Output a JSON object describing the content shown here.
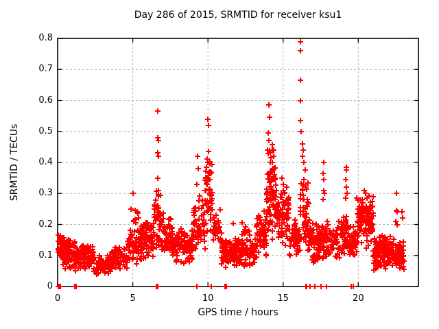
{
  "chart_data": {
    "type": "scatter",
    "title": "Day 286 of 2015, SRMTID for receiver ksu1",
    "xlabel": "GPS time / hours",
    "ylabel": "SRMTID / TECUs",
    "xlim": [
      0,
      24
    ],
    "ylim": [
      0,
      0.8
    ],
    "xticks": [
      0,
      5,
      10,
      15,
      20
    ],
    "xtick_labels": [
      "0",
      "5",
      "10",
      "15",
      "20"
    ],
    "yticks": [
      0,
      0.1,
      0.2,
      0.3,
      0.4,
      0.5,
      0.6,
      0.7,
      0.8
    ],
    "ytick_labels": [
      "0",
      "0.1",
      "0.2",
      "0.3",
      "0.4",
      "0.5",
      "0.6",
      "0.7",
      "0.8"
    ],
    "grid": true,
    "grid_style": "dashed",
    "legend": "none",
    "marker": {
      "shape": "plus",
      "color": "#ff0000",
      "size": 8,
      "stroke": 2
    },
    "colors": {
      "points": "#ff0000",
      "grid": "#b3b3b3",
      "axes": "#000000",
      "background": "#ffffff"
    },
    "seed": 286,
    "density_segments": [
      [
        0.03,
        0.5,
        55,
        0.06,
        0.17
      ],
      [
        0.5,
        1.3,
        75,
        0.05,
        0.155
      ],
      [
        1.3,
        2.4,
        80,
        0.045,
        0.135
      ],
      [
        2.4,
        3.6,
        75,
        0.035,
        0.115
      ],
      [
        3.6,
        4.6,
        70,
        0.05,
        0.135
      ],
      [
        4.6,
        5.6,
        75,
        0.07,
        0.2
      ],
      [
        4.8,
        5.5,
        8,
        0.17,
        0.26
      ],
      [
        5.6,
        6.4,
        70,
        0.08,
        0.22
      ],
      [
        6.4,
        6.9,
        45,
        0.1,
        0.33
      ],
      [
        6.9,
        7.6,
        60,
        0.09,
        0.24
      ],
      [
        7.6,
        9.0,
        110,
        0.07,
        0.19
      ],
      [
        9.0,
        9.8,
        60,
        0.1,
        0.3
      ],
      [
        9.8,
        10.3,
        45,
        0.15,
        0.42
      ],
      [
        10.3,
        10.9,
        35,
        0.1,
        0.26
      ],
      [
        10.9,
        13.2,
        190,
        0.06,
        0.16
      ],
      [
        11.5,
        13.0,
        12,
        0.155,
        0.21
      ],
      [
        13.2,
        13.9,
        60,
        0.09,
        0.25
      ],
      [
        13.9,
        14.6,
        70,
        0.14,
        0.4
      ],
      [
        14.0,
        14.5,
        18,
        0.28,
        0.46
      ],
      [
        14.6,
        15.4,
        70,
        0.12,
        0.33
      ],
      [
        15.4,
        16.1,
        55,
        0.08,
        0.22
      ],
      [
        16.1,
        16.7,
        55,
        0.1,
        0.35
      ],
      [
        16.7,
        18.1,
        110,
        0.07,
        0.22
      ],
      [
        18.1,
        19.4,
        90,
        0.08,
        0.24
      ],
      [
        19.4,
        19.9,
        45,
        0.08,
        0.2
      ],
      [
        19.9,
        21.0,
        115,
        0.12,
        0.3
      ],
      [
        21.0,
        22.3,
        135,
        0.05,
        0.17
      ],
      [
        22.3,
        23.08,
        65,
        0.04,
        0.16
      ]
    ],
    "outliers": [
      [
        4.9,
        0.25
      ],
      [
        5.02,
        0.3
      ],
      [
        5.3,
        0.24
      ],
      [
        6.68,
        0.565
      ],
      [
        6.68,
        0.48
      ],
      [
        6.7,
        0.47
      ],
      [
        6.66,
        0.43
      ],
      [
        6.72,
        0.42
      ],
      [
        6.65,
        0.35
      ],
      [
        6.7,
        0.31
      ],
      [
        9.3,
        0.42
      ],
      [
        9.35,
        0.38
      ],
      [
        9.25,
        0.33
      ],
      [
        10.0,
        0.54
      ],
      [
        10.02,
        0.52
      ],
      [
        10.05,
        0.435
      ],
      [
        9.95,
        0.41
      ],
      [
        10.0,
        0.4
      ],
      [
        9.9,
        0.385
      ],
      [
        10.1,
        0.37
      ],
      [
        9.85,
        0.35
      ],
      [
        10.05,
        0.345
      ],
      [
        9.95,
        0.33
      ],
      [
        9.8,
        0.31
      ],
      [
        10.15,
        0.3
      ],
      [
        14.05,
        0.585
      ],
      [
        14.1,
        0.545
      ],
      [
        14.0,
        0.495
      ],
      [
        14.05,
        0.47
      ],
      [
        13.95,
        0.44
      ],
      [
        14.15,
        0.43
      ],
      [
        14.2,
        0.415
      ],
      [
        14.3,
        0.44
      ],
      [
        14.35,
        0.42
      ],
      [
        14.3,
        0.4
      ],
      [
        14.4,
        0.38
      ],
      [
        14.25,
        0.37
      ],
      [
        14.1,
        0.35
      ],
      [
        14.9,
        0.35
      ],
      [
        15.0,
        0.33
      ],
      [
        15.1,
        0.3
      ],
      [
        16.14,
        0.79
      ],
      [
        16.14,
        0.76
      ],
      [
        16.14,
        0.665
      ],
      [
        16.14,
        0.6
      ],
      [
        16.14,
        0.535
      ],
      [
        16.2,
        0.5
      ],
      [
        16.3,
        0.46
      ],
      [
        16.35,
        0.44
      ],
      [
        16.3,
        0.42
      ],
      [
        16.4,
        0.4
      ],
      [
        16.45,
        0.375
      ],
      [
        16.4,
        0.345
      ],
      [
        16.5,
        0.32
      ],
      [
        17.7,
        0.4
      ],
      [
        17.68,
        0.365
      ],
      [
        17.72,
        0.345
      ],
      [
        17.7,
        0.31
      ],
      [
        17.75,
        0.3
      ],
      [
        17.65,
        0.28
      ],
      [
        19.2,
        0.385
      ],
      [
        19.22,
        0.375
      ],
      [
        19.18,
        0.345
      ],
      [
        19.2,
        0.32
      ],
      [
        19.25,
        0.3
      ],
      [
        19.15,
        0.285
      ],
      [
        20.3,
        0.27
      ],
      [
        20.4,
        0.31
      ],
      [
        20.5,
        0.3
      ],
      [
        20.6,
        0.285
      ],
      [
        22.5,
        0.21
      ],
      [
        22.55,
        0.3
      ],
      [
        22.55,
        0.245
      ],
      [
        22.57,
        0.24
      ],
      [
        22.6,
        0.2
      ],
      [
        22.9,
        0.24
      ],
      [
        22.95,
        0.22
      ]
    ],
    "zero_points": [
      0.05,
      0.1,
      0.15,
      0.2,
      1.15,
      1.22,
      6.55,
      6.6,
      6.65,
      9.25,
      10.2,
      11.15,
      11.22,
      16.5,
      16.55,
      16.8,
      17.1,
      17.5,
      17.9,
      19.55,
      19.65
    ]
  }
}
